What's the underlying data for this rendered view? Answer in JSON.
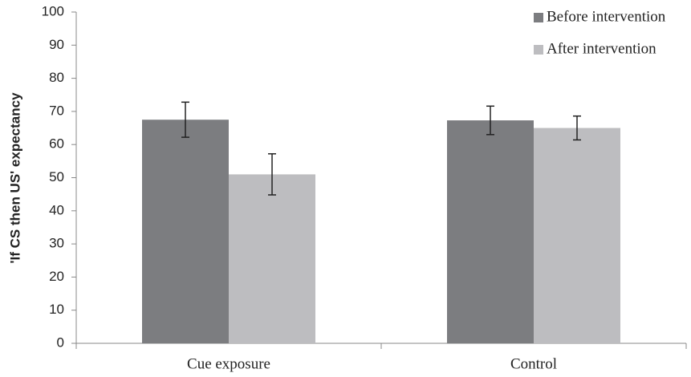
{
  "chart_data": {
    "type": "bar",
    "y_label": "'If CS then US' expectancy",
    "categories": [
      "Cue exposure",
      "Control"
    ],
    "series": [
      {
        "name": "Before intervention",
        "color": "#7c7d80",
        "values": [
          67.5,
          67.3
        ],
        "errors": [
          5.3,
          4.3
        ]
      },
      {
        "name": "After intervention",
        "color": "#bdbdc0",
        "values": [
          51,
          65
        ],
        "errors": [
          6.2,
          3.6
        ]
      }
    ],
    "ylim": [
      0,
      100
    ],
    "yticks": [
      0,
      10,
      20,
      30,
      40,
      50,
      60,
      70,
      80,
      90,
      100
    ],
    "legend": "top-right"
  }
}
